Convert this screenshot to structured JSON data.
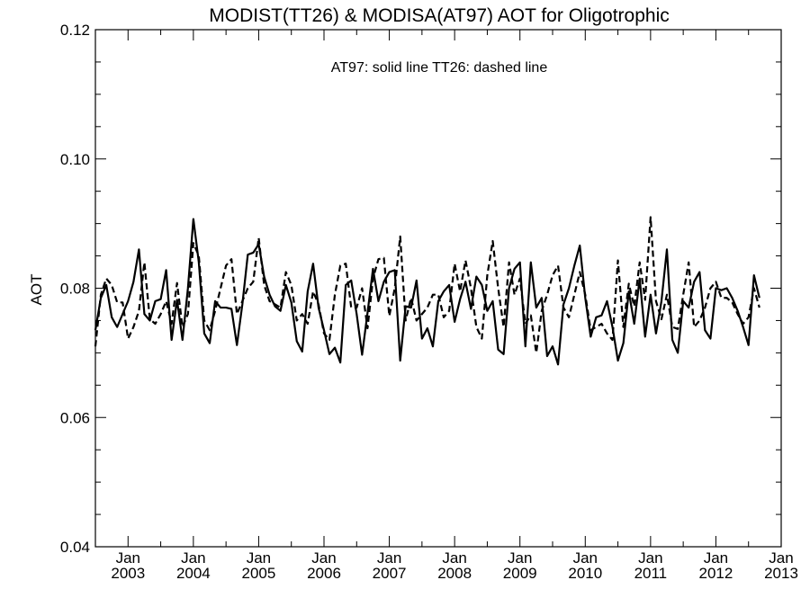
{
  "chart_data": {
    "type": "line",
    "title": "MODIST(TT26) & MODISA(AT97)  AOT for Oligotrophic",
    "annotation": "AT97: solid line   TT26: dashed line",
    "ylabel": "AOT",
    "xlabel": "",
    "ylim": [
      0.04,
      0.12
    ],
    "xlim": [
      "2002-07",
      "2013-01"
    ],
    "yticks": [
      "0.04",
      "0.06",
      "0.08",
      "0.10",
      "0.12"
    ],
    "yminor_step": 0.005,
    "xticks": [
      {
        "month": "Jan",
        "year": "2003",
        "x": "2003-01"
      },
      {
        "month": "Jan",
        "year": "2004",
        "x": "2004-01"
      },
      {
        "month": "Jan",
        "year": "2005",
        "x": "2005-01"
      },
      {
        "month": "Jan",
        "year": "2006",
        "x": "2006-01"
      },
      {
        "month": "Jan",
        "year": "2007",
        "x": "2007-01"
      },
      {
        "month": "Jan",
        "year": "2008",
        "x": "2008-01"
      },
      {
        "month": "Jan",
        "year": "2009",
        "x": "2009-01"
      },
      {
        "month": "Jan",
        "year": "2010",
        "x": "2010-01"
      },
      {
        "month": "Jan",
        "year": "2011",
        "x": "2011-01"
      },
      {
        "month": "Jan",
        "year": "2012",
        "x": "2012-01"
      },
      {
        "month": "Jan",
        "year": "2013",
        "x": "2013-01"
      }
    ],
    "x_start": "2002-07",
    "x_step": "1 month",
    "grid": false,
    "series": [
      {
        "name": "AT97",
        "style": "solid",
        "color": "#000000",
        "values": [
          0.0735,
          0.0785,
          0.0805,
          0.0755,
          0.074,
          0.076,
          0.078,
          0.081,
          0.086,
          0.076,
          0.075,
          0.078,
          0.0783,
          0.0828,
          0.072,
          0.0782,
          0.072,
          0.08,
          0.0907,
          0.084,
          0.073,
          0.0715,
          0.078,
          0.077,
          0.077,
          0.0768,
          0.0712,
          0.0775,
          0.0852,
          0.0855,
          0.0868,
          0.0818,
          0.079,
          0.0772,
          0.0765,
          0.0805,
          0.0778,
          0.0718,
          0.0702,
          0.0795,
          0.0838,
          0.077,
          0.0735,
          0.0698,
          0.0708,
          0.0685,
          0.0805,
          0.0812,
          0.076,
          0.0697,
          0.0762,
          0.083,
          0.078,
          0.081,
          0.0825,
          0.0828,
          0.0688,
          0.0772,
          0.077,
          0.0812,
          0.0722,
          0.0738,
          0.071,
          0.078,
          0.0795,
          0.0805,
          0.0748,
          0.0783,
          0.081,
          0.0768,
          0.0818,
          0.0805,
          0.0765,
          0.078,
          0.0705,
          0.0698,
          0.08,
          0.083,
          0.084,
          0.071,
          0.084,
          0.077,
          0.0785,
          0.0695,
          0.071,
          0.0682,
          0.0775,
          0.08,
          0.0835,
          0.0866,
          0.0785,
          0.0725,
          0.0755,
          0.0758,
          0.078,
          0.074,
          0.0688,
          0.0715,
          0.0795,
          0.0745,
          0.0815,
          0.0725,
          0.079,
          0.073,
          0.078,
          0.086,
          0.072,
          0.07,
          0.078,
          0.077,
          0.081,
          0.0825,
          0.0735,
          0.0722,
          0.08,
          0.0797,
          0.08,
          0.0785,
          0.0765,
          0.074,
          0.0712,
          0.082,
          0.0785
        ]
      },
      {
        "name": "TT26",
        "style": "dashed",
        "color": "#000000",
        "values": [
          0.071,
          0.079,
          0.0815,
          0.0805,
          0.0778,
          0.0778,
          0.0722,
          0.074,
          0.0765,
          0.084,
          0.0752,
          0.0745,
          0.076,
          0.078,
          0.0745,
          0.0808,
          0.074,
          0.076,
          0.087,
          0.085,
          0.075,
          0.0735,
          0.0765,
          0.08,
          0.0835,
          0.0845,
          0.076,
          0.078,
          0.08,
          0.081,
          0.0878,
          0.0805,
          0.078,
          0.0775,
          0.077,
          0.0825,
          0.0805,
          0.075,
          0.076,
          0.0745,
          0.0795,
          0.0775,
          0.073,
          0.072,
          0.079,
          0.0835,
          0.0838,
          0.077,
          0.077,
          0.08,
          0.0738,
          0.0815,
          0.0845,
          0.0847,
          0.0757,
          0.08,
          0.088,
          0.075,
          0.0785,
          0.075,
          0.076,
          0.077,
          0.079,
          0.079,
          0.0755,
          0.0765,
          0.0838,
          0.0795,
          0.0843,
          0.08,
          0.074,
          0.0722,
          0.082,
          0.0873,
          0.08,
          0.074,
          0.084,
          0.079,
          0.0815,
          0.0745,
          0.0758,
          0.07,
          0.0765,
          0.079,
          0.082,
          0.0835,
          0.077,
          0.0755,
          0.079,
          0.0825,
          0.079,
          0.0735,
          0.074,
          0.0745,
          0.073,
          0.072,
          0.0843,
          0.074,
          0.0807,
          0.0772,
          0.084,
          0.0782,
          0.091,
          0.078,
          0.0752,
          0.079,
          0.074,
          0.0737,
          0.079,
          0.084,
          0.074,
          0.075,
          0.077,
          0.08,
          0.081,
          0.0785,
          0.0785,
          0.0778,
          0.076,
          0.0745,
          0.0755,
          0.08,
          0.077
        ]
      }
    ]
  }
}
